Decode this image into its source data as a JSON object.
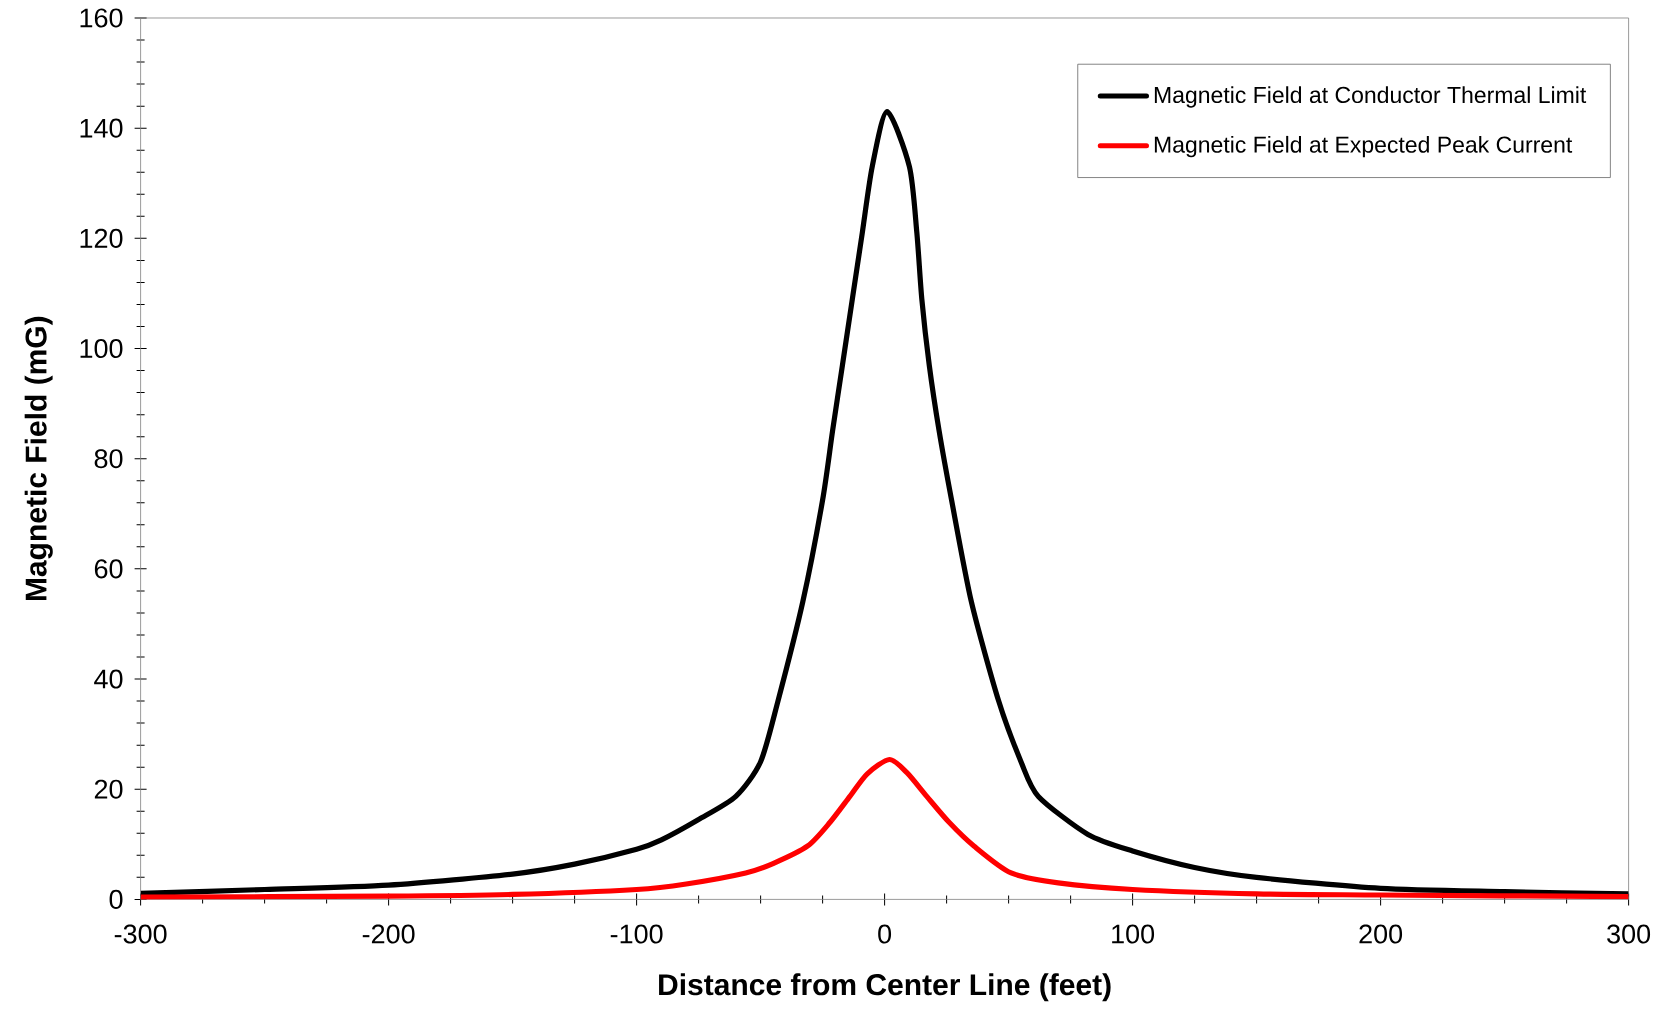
{
  "chart_data": {
    "type": "line",
    "xlabel": "Distance from Center Line (feet)",
    "ylabel": "Magnetic Field (mG)",
    "xlim": [
      -300,
      300
    ],
    "ylim": [
      0,
      160
    ],
    "xticks": [
      -300,
      -200,
      -100,
      0,
      100,
      200,
      300
    ],
    "yticks": [
      0,
      20,
      40,
      60,
      80,
      100,
      120,
      140,
      160
    ],
    "grid": false,
    "legend": "top right",
    "marker": "none",
    "line_style": "solid",
    "series": [
      {
        "name": "Magnetic Field at Conductor Thermal Limit",
        "color": "#000000",
        "x": [
          -300,
          -250,
          -200,
          -150,
          -125,
          -100,
          -90,
          -75,
          -60,
          -50,
          -43,
          -33,
          -25,
          -21,
          -17,
          -13,
          -9,
          -5,
          1,
          10,
          13,
          15,
          18,
          22,
          27,
          35,
          46,
          55,
          62,
          82,
          100,
          125,
          150,
          200,
          250,
          300
        ],
        "values": [
          1.1,
          1.8,
          2.6,
          4.6,
          6.4,
          9.1,
          10.8,
          14.5,
          18.7,
          25,
          36,
          54,
          72.5,
          85,
          97,
          109,
          121,
          133,
          143,
          133,
          121,
          109,
          97,
          85,
          72.5,
          54,
          36,
          25,
          18.7,
          11.8,
          8.8,
          5.8,
          4,
          2,
          1.4,
          1
        ]
      },
      {
        "name": "Magnetic Field at Expected Peak Current",
        "color": "#ff0000",
        "x": [
          -300,
          -200,
          -150,
          -100,
          -80,
          -56,
          -45,
          -31,
          -22,
          -14,
          -7,
          2,
          9,
          17,
          26,
          36,
          51,
          70,
          100,
          150,
          200,
          300
        ],
        "values": [
          0.4,
          0.6,
          0.9,
          1.8,
          2.8,
          4.8,
          6.5,
          9.7,
          14,
          18.7,
          22.8,
          25.4,
          23,
          18.7,
          14,
          9.7,
          4.8,
          3,
          1.8,
          1,
          0.8,
          0.5
        ]
      }
    ]
  }
}
